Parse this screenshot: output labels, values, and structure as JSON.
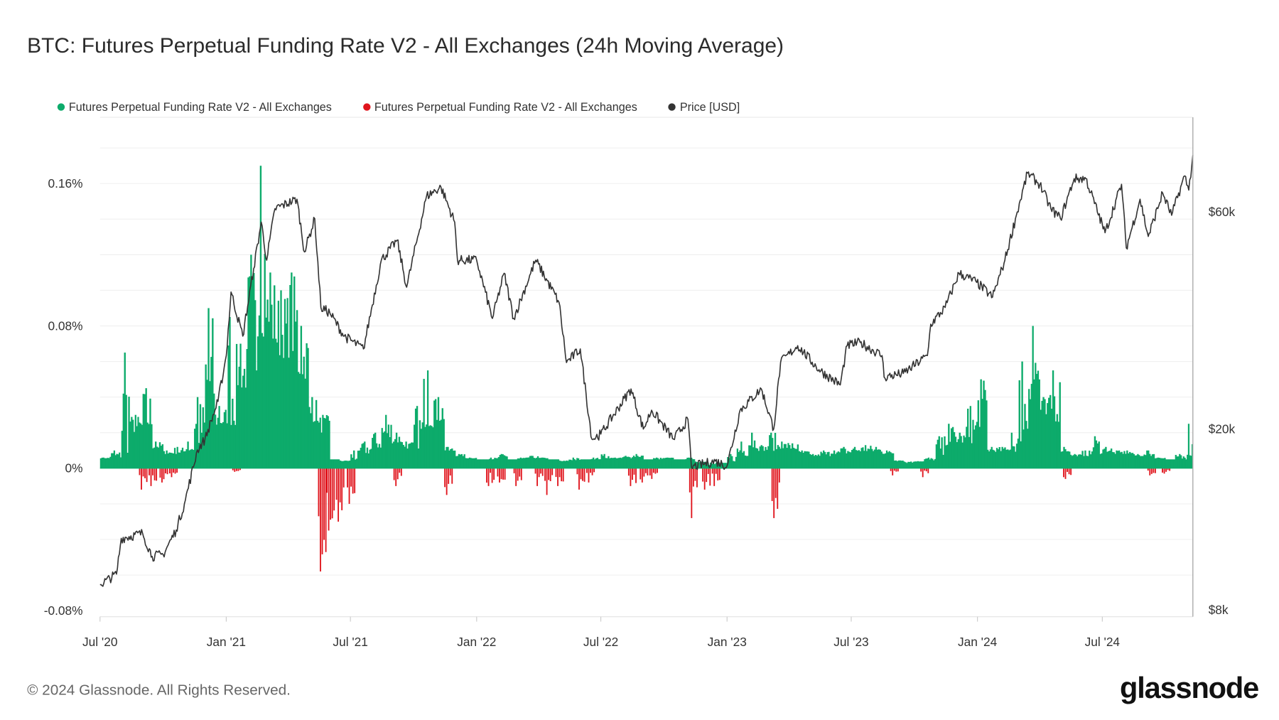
{
  "title": "BTC: Futures Perpetual Funding Rate V2 - All Exchanges (24h Moving Average)",
  "legend": [
    {
      "label": "Futures Perpetual Funding Rate V2 - All Exchanges",
      "color": "#0dab6b"
    },
    {
      "label": "Futures Perpetual Funding Rate V2 - All Exchanges",
      "color": "#e0141c"
    },
    {
      "label": "Price [USD]",
      "color": "#333333"
    }
  ],
  "footer": "© 2024 Glassnode. All Rights Reserved.",
  "logo": "glassnode",
  "chart_data": {
    "type": "bar+line",
    "title": "BTC: Futures Perpetual Funding Rate V2 - All Exchanges (24h Moving Average)",
    "x_ticks": [
      "Jul '20",
      "Jan '21",
      "Jul '21",
      "Jan '22",
      "Jul '22",
      "Jan '23",
      "Jul '23",
      "Jan '24",
      "Jul '24"
    ],
    "x_tick_dates": [
      "2020-07-01",
      "2021-01-01",
      "2021-07-01",
      "2022-01-01",
      "2022-07-01",
      "2023-01-01",
      "2023-07-01",
      "2024-01-01",
      "2024-07-01"
    ],
    "x_range": [
      "2020-07-01",
      "2024-11-10"
    ],
    "y_left": {
      "ticks": [
        "0.16%",
        "0.08%",
        "0%",
        "-0.08%"
      ],
      "tick_values": [
        0.16,
        0.08,
        0,
        -0.08
      ],
      "range": [
        -0.08,
        0.18
      ],
      "unit": "%"
    },
    "y_right": {
      "ticks": [
        "$60k",
        "$20k",
        "$8k"
      ],
      "tick_values": [
        60000,
        20000,
        8000
      ],
      "scale": "log",
      "range": [
        8000,
        82000
      ]
    },
    "grid": "horizontal",
    "legend_position": "top-left",
    "series": [
      {
        "name": "Futures Perpetual Funding Rate V2 - All Exchanges",
        "color": "#0dab6b",
        "type": "bar",
        "axis": "left",
        "points": [
          [
            "2020-07-01",
            0.006
          ],
          [
            "2020-07-15",
            0.01
          ],
          [
            "2020-08-01",
            0.065
          ],
          [
            "2020-08-15",
            0.03
          ],
          [
            "2020-09-01",
            0.045
          ],
          [
            "2020-09-15",
            0.015
          ],
          [
            "2020-10-01",
            0.01
          ],
          [
            "2020-10-15",
            0.012
          ],
          [
            "2020-11-01",
            0.015
          ],
          [
            "2020-11-15",
            0.04
          ],
          [
            "2020-12-01",
            0.09
          ],
          [
            "2020-12-15",
            0.035
          ],
          [
            "2021-01-01",
            0.085
          ],
          [
            "2021-01-15",
            0.07
          ],
          [
            "2021-02-01",
            0.12
          ],
          [
            "2021-02-15",
            0.17
          ],
          [
            "2021-03-01",
            0.11
          ],
          [
            "2021-03-15",
            0.1
          ],
          [
            "2021-04-01",
            0.11
          ],
          [
            "2021-04-15",
            0.08
          ],
          [
            "2021-05-01",
            0.04
          ],
          [
            "2021-05-15",
            0.03
          ],
          [
            "2021-06-01",
            0.005
          ],
          [
            "2021-06-15",
            0.004
          ],
          [
            "2021-07-01",
            0.01
          ],
          [
            "2021-07-15",
            0.015
          ],
          [
            "2021-08-01",
            0.02
          ],
          [
            "2021-08-15",
            0.03
          ],
          [
            "2021-09-01",
            0.02
          ],
          [
            "2021-09-15",
            0.015
          ],
          [
            "2021-10-01",
            0.035
          ],
          [
            "2021-10-15",
            0.055
          ],
          [
            "2021-11-01",
            0.04
          ],
          [
            "2021-11-15",
            0.012
          ],
          [
            "2021-12-01",
            0.008
          ],
          [
            "2021-12-15",
            0.006
          ],
          [
            "2022-01-01",
            0.005
          ],
          [
            "2022-01-15",
            0.006
          ],
          [
            "2022-02-01",
            0.008
          ],
          [
            "2022-02-15",
            0.005
          ],
          [
            "2022-03-01",
            0.006
          ],
          [
            "2022-03-15",
            0.007
          ],
          [
            "2022-04-01",
            0.006
          ],
          [
            "2022-04-15",
            0.005
          ],
          [
            "2022-05-01",
            0.004
          ],
          [
            "2022-05-15",
            0.006
          ],
          [
            "2022-06-01",
            0.005
          ],
          [
            "2022-06-15",
            0.006
          ],
          [
            "2022-07-01",
            0.008
          ],
          [
            "2022-07-15",
            0.006
          ],
          [
            "2022-08-01",
            0.007
          ],
          [
            "2022-08-15",
            0.008
          ],
          [
            "2022-09-01",
            0.005
          ],
          [
            "2022-09-15",
            0.006
          ],
          [
            "2022-10-01",
            0.006
          ],
          [
            "2022-10-15",
            0.005
          ],
          [
            "2022-11-01",
            0.006
          ],
          [
            "2022-11-15",
            0.003
          ],
          [
            "2022-12-01",
            0.002
          ],
          [
            "2022-12-15",
            0.003
          ],
          [
            "2023-01-01",
            0.008
          ],
          [
            "2023-01-15",
            0.015
          ],
          [
            "2023-02-01",
            0.02
          ],
          [
            "2023-02-15",
            0.013
          ],
          [
            "2023-03-01",
            0.02
          ],
          [
            "2023-03-15",
            0.015
          ],
          [
            "2023-04-01",
            0.014
          ],
          [
            "2023-04-15",
            0.01
          ],
          [
            "2023-05-01",
            0.008
          ],
          [
            "2023-05-15",
            0.01
          ],
          [
            "2023-06-01",
            0.01
          ],
          [
            "2023-06-15",
            0.012
          ],
          [
            "2023-07-01",
            0.012
          ],
          [
            "2023-07-15",
            0.013
          ],
          [
            "2023-08-01",
            0.012
          ],
          [
            "2023-08-15",
            0.01
          ],
          [
            "2023-09-01",
            0.004
          ],
          [
            "2023-09-15",
            0.003
          ],
          [
            "2023-10-01",
            0.004
          ],
          [
            "2023-10-15",
            0.006
          ],
          [
            "2023-11-01",
            0.018
          ],
          [
            "2023-11-15",
            0.025
          ],
          [
            "2023-12-01",
            0.02
          ],
          [
            "2023-12-15",
            0.035
          ],
          [
            "2024-01-01",
            0.05
          ],
          [
            "2024-01-15",
            0.012
          ],
          [
            "2024-02-01",
            0.012
          ],
          [
            "2024-02-15",
            0.02
          ],
          [
            "2024-03-01",
            0.06
          ],
          [
            "2024-03-15",
            0.08
          ],
          [
            "2024-04-01",
            0.04
          ],
          [
            "2024-04-15",
            0.055
          ],
          [
            "2024-05-01",
            0.012
          ],
          [
            "2024-05-15",
            0.008
          ],
          [
            "2024-06-01",
            0.01
          ],
          [
            "2024-06-15",
            0.018
          ],
          [
            "2024-07-01",
            0.012
          ],
          [
            "2024-07-15",
            0.01
          ],
          [
            "2024-08-01",
            0.01
          ],
          [
            "2024-08-15",
            0.008
          ],
          [
            "2024-09-01",
            0.01
          ],
          [
            "2024-09-15",
            0.006
          ],
          [
            "2024-10-01",
            0.005
          ],
          [
            "2024-10-15",
            0.008
          ],
          [
            "2024-11-01",
            0.025
          ]
        ]
      },
      {
        "name": "Futures Perpetual Funding Rate V2 - All Exchanges",
        "color": "#e0141c",
        "type": "bar",
        "axis": "left",
        "points": [
          [
            "2020-09-01",
            -0.012
          ],
          [
            "2020-09-15",
            -0.01
          ],
          [
            "2020-10-01",
            -0.008
          ],
          [
            "2020-10-15",
            -0.005
          ],
          [
            "2021-01-15",
            -0.002
          ],
          [
            "2021-05-20",
            -0.058
          ],
          [
            "2021-06-01",
            -0.035
          ],
          [
            "2021-06-15",
            -0.03
          ],
          [
            "2021-07-01",
            -0.02
          ],
          [
            "2021-09-07",
            -0.01
          ],
          [
            "2021-11-20",
            -0.015
          ],
          [
            "2022-01-20",
            -0.01
          ],
          [
            "2022-02-05",
            -0.008
          ],
          [
            "2022-03-01",
            -0.01
          ],
          [
            "2022-04-01",
            -0.01
          ],
          [
            "2022-04-15",
            -0.015
          ],
          [
            "2022-05-01",
            -0.01
          ],
          [
            "2022-06-01",
            -0.012
          ],
          [
            "2022-06-15",
            -0.008
          ],
          [
            "2022-08-15",
            -0.01
          ],
          [
            "2022-09-01",
            -0.008
          ],
          [
            "2022-09-15",
            -0.006
          ],
          [
            "2022-11-12",
            -0.028
          ],
          [
            "2022-12-01",
            -0.012
          ],
          [
            "2022-12-15",
            -0.01
          ],
          [
            "2023-03-12",
            -0.028
          ],
          [
            "2023-09-01",
            -0.004
          ],
          [
            "2023-10-15",
            -0.005
          ],
          [
            "2024-05-10",
            -0.006
          ],
          [
            "2024-09-10",
            -0.004
          ],
          [
            "2024-10-01",
            -0.003
          ]
        ]
      },
      {
        "name": "Price [USD]",
        "color": "#333333",
        "type": "line",
        "axis": "right",
        "points": [
          [
            "2020-07-01",
            9100
          ],
          [
            "2020-07-25",
            9600
          ],
          [
            "2020-08-01",
            11500
          ],
          [
            "2020-09-01",
            11800
          ],
          [
            "2020-09-15",
            10500
          ],
          [
            "2020-10-01",
            10600
          ],
          [
            "2020-10-20",
            12000
          ],
          [
            "2020-11-01",
            13700
          ],
          [
            "2020-11-20",
            18000
          ],
          [
            "2020-12-01",
            19000
          ],
          [
            "2020-12-20",
            23000
          ],
          [
            "2021-01-01",
            29000
          ],
          [
            "2021-01-08",
            40000
          ],
          [
            "2021-01-25",
            32000
          ],
          [
            "2021-02-10",
            45000
          ],
          [
            "2021-02-21",
            57000
          ],
          [
            "2021-03-01",
            47000
          ],
          [
            "2021-03-13",
            61000
          ],
          [
            "2021-04-14",
            64000
          ],
          [
            "2021-04-25",
            49000
          ],
          [
            "2021-05-10",
            58000
          ],
          [
            "2021-05-19",
            37000
          ],
          [
            "2021-06-01",
            36000
          ],
          [
            "2021-06-22",
            32000
          ],
          [
            "2021-07-20",
            30000
          ],
          [
            "2021-08-15",
            47000
          ],
          [
            "2021-09-07",
            52000
          ],
          [
            "2021-09-21",
            41000
          ],
          [
            "2021-10-20",
            65000
          ],
          [
            "2021-11-10",
            68000
          ],
          [
            "2021-11-30",
            57000
          ],
          [
            "2021-12-04",
            47000
          ],
          [
            "2022-01-01",
            47000
          ],
          [
            "2022-01-24",
            35000
          ],
          [
            "2022-02-10",
            44000
          ],
          [
            "2022-02-24",
            35000
          ],
          [
            "2022-03-28",
            47000
          ],
          [
            "2022-05-01",
            38000
          ],
          [
            "2022-05-12",
            28000
          ],
          [
            "2022-06-01",
            30000
          ],
          [
            "2022-06-18",
            19000
          ],
          [
            "2022-07-01",
            19500
          ],
          [
            "2022-08-14",
            24500
          ],
          [
            "2022-09-01",
            20000
          ],
          [
            "2022-09-13",
            22000
          ],
          [
            "2022-10-15",
            19000
          ],
          [
            "2022-11-05",
            21000
          ],
          [
            "2022-11-10",
            16500
          ],
          [
            "2022-12-15",
            17000
          ],
          [
            "2023-01-01",
            16600
          ],
          [
            "2023-01-20",
            22000
          ],
          [
            "2023-02-20",
            24500
          ],
          [
            "2023-03-10",
            20000
          ],
          [
            "2023-03-20",
            28000
          ],
          [
            "2023-04-14",
            30500
          ],
          [
            "2023-05-15",
            27000
          ],
          [
            "2023-06-15",
            25000
          ],
          [
            "2023-06-25",
            30500
          ],
          [
            "2023-07-14",
            31000
          ],
          [
            "2023-08-15",
            29000
          ],
          [
            "2023-08-18",
            26000
          ],
          [
            "2023-09-15",
            26500
          ],
          [
            "2023-10-20",
            29000
          ],
          [
            "2023-10-25",
            34000
          ],
          [
            "2023-11-15",
            37000
          ],
          [
            "2023-12-05",
            44000
          ],
          [
            "2023-12-31",
            42000
          ],
          [
            "2024-01-23",
            39000
          ],
          [
            "2024-02-10",
            47000
          ],
          [
            "2024-02-28",
            60000
          ],
          [
            "2024-03-14",
            73000
          ],
          [
            "2024-04-01",
            69000
          ],
          [
            "2024-04-17",
            61000
          ],
          [
            "2024-05-01",
            58000
          ],
          [
            "2024-05-21",
            71000
          ],
          [
            "2024-06-07",
            71000
          ],
          [
            "2024-07-05",
            54000
          ],
          [
            "2024-07-29",
            69000
          ],
          [
            "2024-08-05",
            50000
          ],
          [
            "2024-08-25",
            64000
          ],
          [
            "2024-09-06",
            53000
          ],
          [
            "2024-09-27",
            66000
          ],
          [
            "2024-10-10",
            59000
          ],
          [
            "2024-10-29",
            72000
          ],
          [
            "2024-11-04",
            67000
          ],
          [
            "2024-11-10",
            80000
          ]
        ]
      }
    ]
  }
}
